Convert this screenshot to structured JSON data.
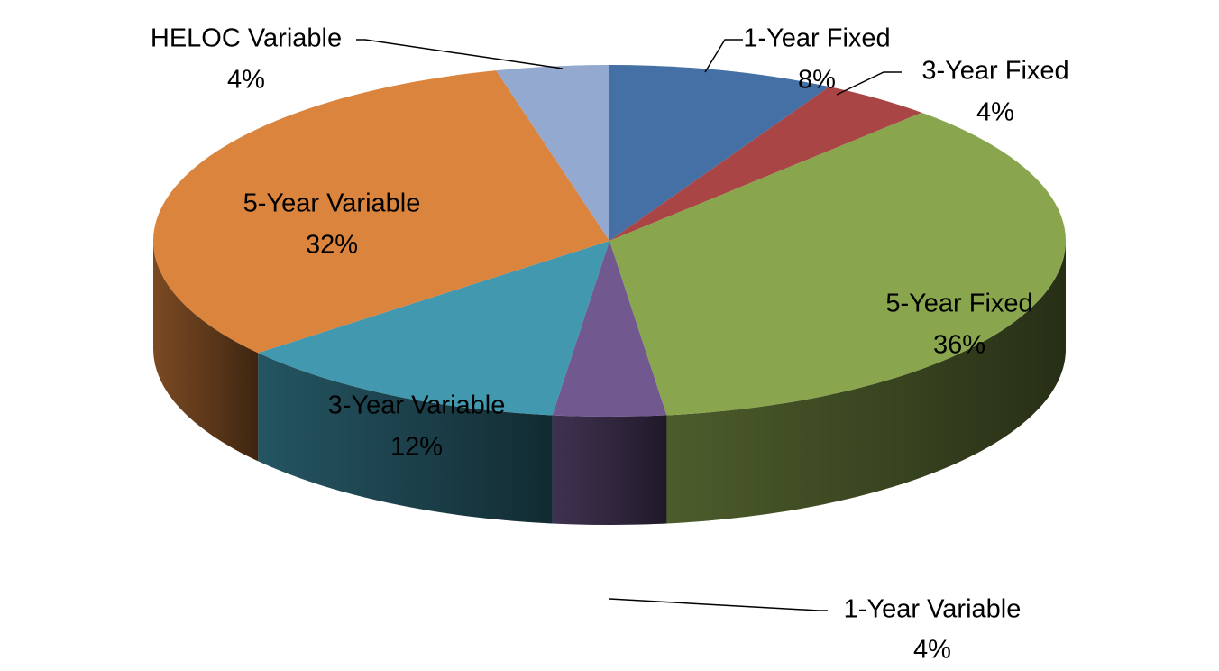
{
  "chart_data": {
    "type": "pie",
    "title": "",
    "three_d": true,
    "legend": "none",
    "slices": [
      {
        "label": "1-Year Fixed",
        "pct_label": "8%",
        "value": 8,
        "color": "#4470A5"
      },
      {
        "label": "3-Year Fixed",
        "pct_label": "4%",
        "value": 4,
        "color": "#A94545"
      },
      {
        "label": "5-Year Fixed",
        "pct_label": "36%",
        "value": 36,
        "color": "#89A54E"
      },
      {
        "label": "1-Year Variable",
        "pct_label": "4%",
        "value": 4,
        "color": "#71588F"
      },
      {
        "label": "3-Year Variable",
        "pct_label": "12%",
        "value": 12,
        "color": "#4198AF"
      },
      {
        "label": "5-Year Variable",
        "pct_label": "32%",
        "value": 32,
        "color": "#DB843D"
      },
      {
        "label": "HELOC Variable",
        "pct_label": "4%",
        "value": 4,
        "color": "#93A9CF"
      }
    ]
  }
}
